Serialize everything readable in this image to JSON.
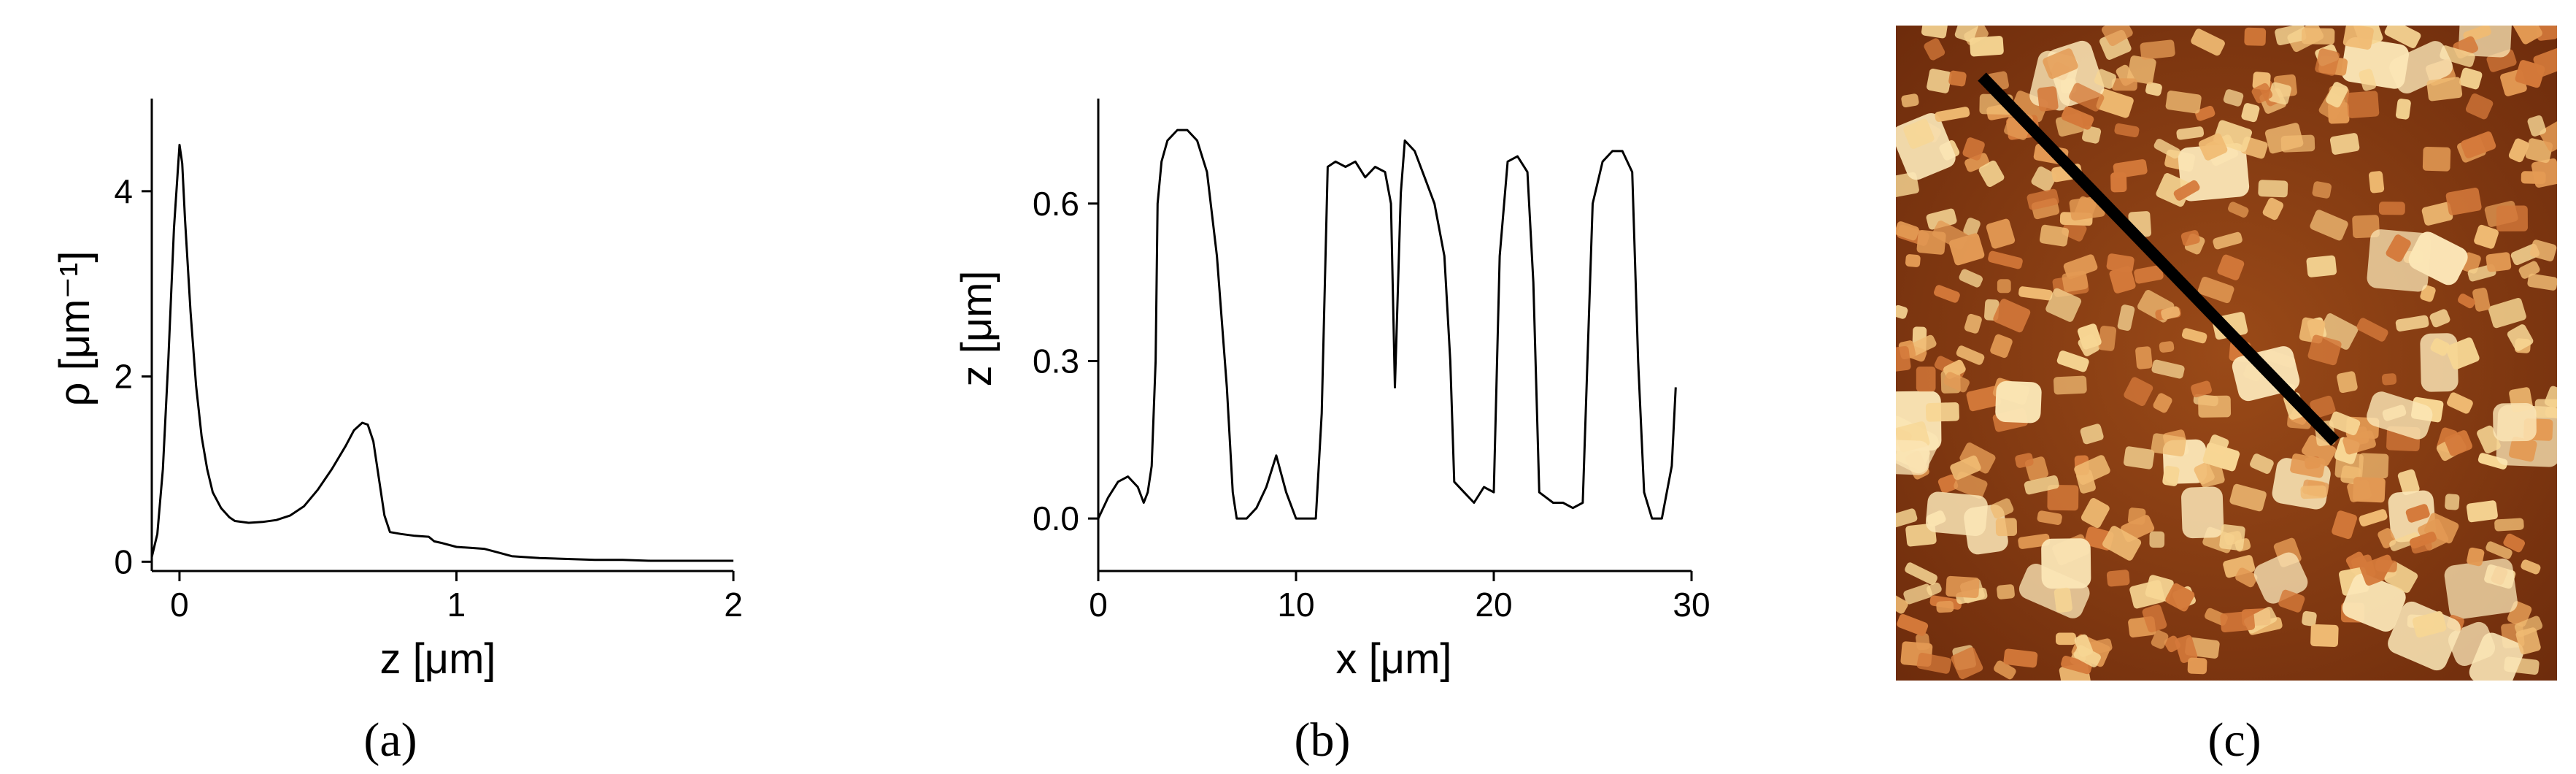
{
  "panels": {
    "a": {
      "label": "(a)"
    },
    "b": {
      "label": "(b)"
    },
    "c": {
      "label": "(c)"
    }
  },
  "chart_data": [
    {
      "type": "line",
      "xlabel": "z [μm]",
      "ylabel": "ρ [μm⁻¹]",
      "xlim": [
        -0.1,
        2.0
      ],
      "ylim": [
        -0.1,
        5.0
      ],
      "xticks": [
        0,
        1,
        2
      ],
      "yticks": [
        0,
        2,
        4
      ],
      "series": [
        {
          "x": [
            -0.1,
            -0.08,
            -0.06,
            -0.04,
            -0.02,
            0.0,
            0.01,
            0.02,
            0.04,
            0.06,
            0.08,
            0.1,
            0.12,
            0.15,
            0.18,
            0.2,
            0.25,
            0.3,
            0.35,
            0.4,
            0.45,
            0.5,
            0.55,
            0.6,
            0.63,
            0.66,
            0.68,
            0.7,
            0.72,
            0.74,
            0.76,
            0.8,
            0.85,
            0.9,
            0.92,
            0.95,
            1.0,
            1.05,
            1.1,
            1.15,
            1.2,
            1.3,
            1.4,
            1.5,
            1.6,
            1.7,
            1.8,
            1.9,
            2.0
          ],
          "y": [
            0.05,
            0.3,
            1.0,
            2.2,
            3.6,
            4.5,
            4.3,
            3.7,
            2.7,
            1.9,
            1.35,
            1.0,
            0.75,
            0.58,
            0.48,
            0.44,
            0.42,
            0.43,
            0.45,
            0.5,
            0.6,
            0.78,
            1.0,
            1.25,
            1.42,
            1.5,
            1.48,
            1.3,
            0.9,
            0.5,
            0.32,
            0.3,
            0.28,
            0.27,
            0.22,
            0.2,
            0.16,
            0.15,
            0.14,
            0.1,
            0.06,
            0.04,
            0.03,
            0.02,
            0.02,
            0.01,
            0.01,
            0.01,
            0.01
          ]
        }
      ]
    },
    {
      "type": "line",
      "xlabel": "x [μm]",
      "ylabel": "z [μm]",
      "xlim": [
        0,
        30
      ],
      "ylim": [
        -0.1,
        0.8
      ],
      "xticks": [
        0,
        10,
        20,
        30
      ],
      "yticks": [
        0.0,
        0.3,
        0.6
      ],
      "series": [
        {
          "x": [
            0,
            0.5,
            1,
            1.5,
            2,
            2.3,
            2.5,
            2.7,
            2.9,
            3.0,
            3.2,
            3.5,
            4,
            4.5,
            5,
            5.5,
            6,
            6.5,
            6.8,
            7,
            7.5,
            8,
            8.5,
            9,
            9.5,
            10,
            10.5,
            11,
            11.3,
            11.6,
            12,
            12.5,
            13,
            13.5,
            14,
            14.5,
            14.8,
            15,
            15.3,
            15.5,
            16,
            16.5,
            17,
            17.5,
            17.8,
            18,
            18.5,
            19,
            19.5,
            20,
            20.3,
            20.7,
            21.2,
            21.7,
            22,
            22.3,
            23,
            23.5,
            24,
            24.5,
            25,
            25.5,
            26,
            26.5,
            27,
            27.3,
            27.6,
            28,
            28.5,
            29,
            29.2
          ],
          "y": [
            0.0,
            0.04,
            0.07,
            0.08,
            0.06,
            0.03,
            0.05,
            0.1,
            0.3,
            0.6,
            0.68,
            0.72,
            0.74,
            0.74,
            0.72,
            0.66,
            0.5,
            0.25,
            0.05,
            0.0,
            0.0,
            0.02,
            0.06,
            0.12,
            0.05,
            0.0,
            0.0,
            0.0,
            0.2,
            0.67,
            0.68,
            0.67,
            0.68,
            0.65,
            0.67,
            0.66,
            0.6,
            0.25,
            0.62,
            0.72,
            0.7,
            0.65,
            0.6,
            0.5,
            0.3,
            0.07,
            0.05,
            0.03,
            0.06,
            0.05,
            0.5,
            0.68,
            0.69,
            0.66,
            0.45,
            0.05,
            0.03,
            0.03,
            0.02,
            0.03,
            0.6,
            0.68,
            0.7,
            0.7,
            0.66,
            0.3,
            0.05,
            0.0,
            0.0,
            0.1,
            0.25
          ]
        }
      ]
    }
  ],
  "afm_image": {
    "background": "#8a3f14",
    "particle_colors": [
      "#d4793a",
      "#e39a54",
      "#f0bb73",
      "#f7d694",
      "#fbe6b6"
    ],
    "line_color": "#000000"
  }
}
